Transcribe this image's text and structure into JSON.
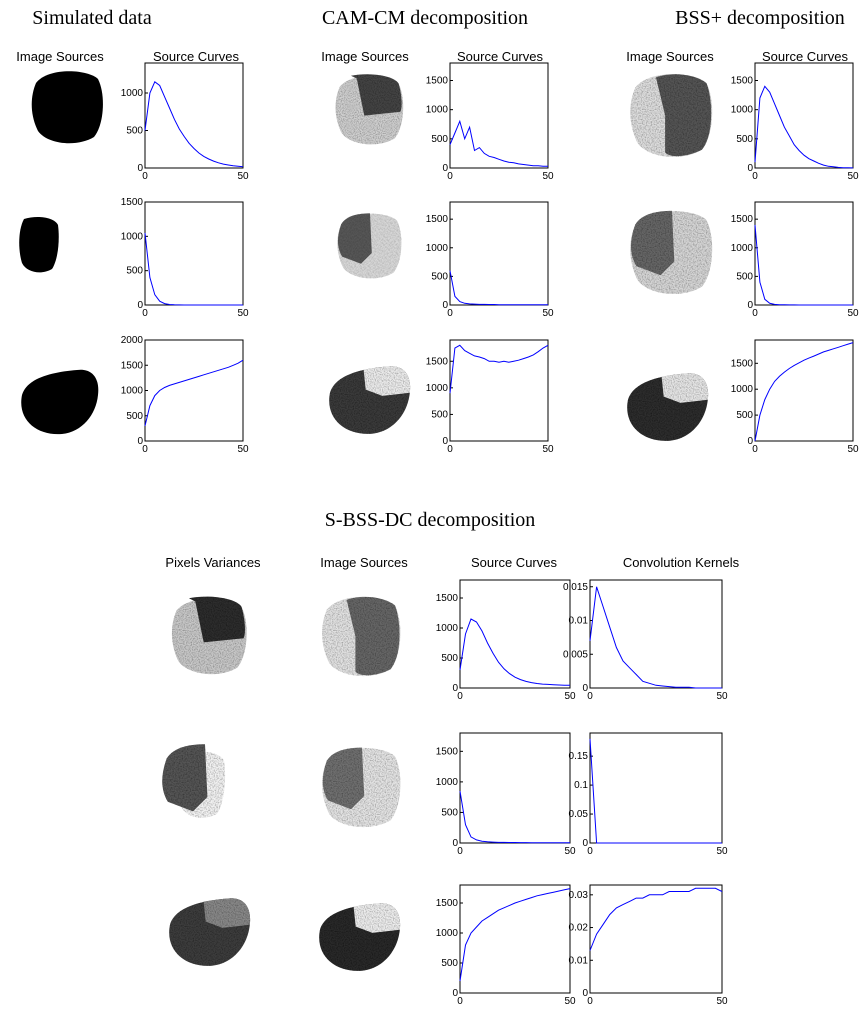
{
  "groups": [
    {
      "title": "Simulated data",
      "headers": [
        "Image Sources",
        "Source Curves"
      ]
    },
    {
      "title": "CAM-CM decomposition",
      "headers": [
        "Image Sources",
        "Source Curves"
      ]
    },
    {
      "title": "BSS+ decomposition",
      "headers": [
        "Image Sources",
        "Source Curves"
      ]
    },
    {
      "title": "S-BSS-DC decomposition",
      "headers": [
        "Pixels Variances",
        "Image Sources",
        "Source Curves",
        "Convolution Kernels"
      ]
    }
  ],
  "chart_data": [
    {
      "type": "line",
      "x": [
        0,
        2.5,
        5,
        7.5,
        10,
        12.5,
        15,
        17.5,
        20,
        22.5,
        25,
        27.5,
        30,
        32.5,
        35,
        37.5,
        40,
        42.5,
        45,
        47.5,
        50
      ],
      "values": [
        500,
        1000,
        1150,
        1100,
        950,
        800,
        650,
        520,
        420,
        330,
        260,
        200,
        155,
        120,
        92,
        70,
        52,
        40,
        30,
        22,
        16
      ],
      "color": "#0000ff",
      "xlim": [
        0,
        50
      ],
      "xticks": [
        0,
        50
      ],
      "ylim": [
        0,
        1400
      ],
      "yticks": [
        0,
        500,
        1000
      ]
    },
    {
      "type": "line",
      "x": [
        0,
        2.5,
        5,
        7.5,
        10,
        12.5,
        15,
        17.5,
        20,
        22.5,
        25,
        27.5,
        30,
        32.5,
        35,
        37.5,
        40,
        42.5,
        45,
        47.5,
        50
      ],
      "values": [
        1050,
        400,
        150,
        55,
        20,
        8,
        3,
        1,
        0,
        0,
        0,
        0,
        0,
        0,
        0,
        0,
        0,
        0,
        0,
        0,
        0
      ],
      "color": "#0000ff",
      "xlim": [
        0,
        50
      ],
      "xticks": [
        0,
        50
      ],
      "ylim": [
        0,
        1500
      ],
      "yticks": [
        0,
        500,
        1000,
        1500
      ]
    },
    {
      "type": "line",
      "x": [
        0,
        2.5,
        5,
        7.5,
        10,
        12.5,
        15,
        17.5,
        20,
        22.5,
        25,
        27.5,
        30,
        32.5,
        35,
        37.5,
        40,
        42.5,
        45,
        47.5,
        50
      ],
      "values": [
        300,
        700,
        900,
        1000,
        1060,
        1100,
        1130,
        1160,
        1190,
        1220,
        1250,
        1280,
        1310,
        1340,
        1370,
        1400,
        1430,
        1460,
        1500,
        1540,
        1600
      ],
      "color": "#0000ff",
      "xlim": [
        0,
        50
      ],
      "xticks": [
        0,
        50
      ],
      "ylim": [
        0,
        2000
      ],
      "yticks": [
        0,
        500,
        1000,
        1500,
        2000
      ]
    },
    {
      "type": "line",
      "x": [
        0,
        2.5,
        5,
        7.5,
        10,
        12.5,
        15,
        17.5,
        20,
        22.5,
        25,
        27.5,
        30,
        32.5,
        35,
        37.5,
        40,
        42.5,
        45,
        47.5,
        50
      ],
      "values": [
        400,
        600,
        800,
        500,
        700,
        300,
        350,
        250,
        200,
        180,
        150,
        120,
        100,
        90,
        70,
        60,
        50,
        40,
        40,
        30,
        30
      ],
      "color": "#0000ff",
      "xlim": [
        0,
        50
      ],
      "xticks": [
        0,
        50
      ],
      "ylim": [
        0,
        1800
      ],
      "yticks": [
        0,
        500,
        1000,
        1500
      ]
    },
    {
      "type": "line",
      "x": [
        0,
        2.5,
        5,
        7.5,
        10,
        12.5,
        15,
        17.5,
        20,
        22.5,
        25,
        27.5,
        30,
        32.5,
        35,
        37.5,
        40,
        42.5,
        45,
        47.5,
        50
      ],
      "values": [
        600,
        150,
        60,
        30,
        20,
        15,
        10,
        10,
        8,
        8,
        6,
        6,
        5,
        5,
        5,
        5,
        4,
        4,
        4,
        4,
        4
      ],
      "color": "#0000ff",
      "xlim": [
        0,
        50
      ],
      "xticks": [
        0,
        50
      ],
      "ylim": [
        0,
        1800
      ],
      "yticks": [
        0,
        500,
        1000,
        1500
      ]
    },
    {
      "type": "line",
      "x": [
        0,
        2.5,
        5,
        7.5,
        10,
        12.5,
        15,
        17.5,
        20,
        22.5,
        25,
        27.5,
        30,
        32.5,
        35,
        37.5,
        40,
        42.5,
        45,
        47.5,
        50
      ],
      "values": [
        900,
        1750,
        1800,
        1700,
        1650,
        1600,
        1580,
        1550,
        1500,
        1500,
        1480,
        1500,
        1480,
        1500,
        1520,
        1550,
        1580,
        1620,
        1680,
        1750,
        1800
      ],
      "color": "#0000ff",
      "xlim": [
        0,
        50
      ],
      "xticks": [
        0,
        50
      ],
      "ylim": [
        0,
        1900
      ],
      "yticks": [
        0,
        500,
        1000,
        1500
      ]
    },
    {
      "type": "line",
      "x": [
        0,
        2.5,
        5,
        7.5,
        10,
        12.5,
        15,
        17.5,
        20,
        22.5,
        25,
        27.5,
        30,
        32.5,
        35,
        37.5,
        40,
        42.5,
        45,
        47.5,
        50
      ],
      "values": [
        100,
        1200,
        1400,
        1300,
        1100,
        900,
        700,
        550,
        400,
        300,
        220,
        160,
        120,
        80,
        50,
        30,
        20,
        10,
        5,
        3,
        2
      ],
      "color": "#0000ff",
      "xlim": [
        0,
        50
      ],
      "xticks": [
        0,
        50
      ],
      "ylim": [
        0,
        1800
      ],
      "yticks": [
        0,
        500,
        1000,
        1500
      ]
    },
    {
      "type": "line",
      "x": [
        0,
        2.5,
        5,
        7.5,
        10,
        12.5,
        15,
        17.5,
        20,
        22.5,
        25,
        27.5,
        30,
        32.5,
        35,
        37.5,
        40,
        42.5,
        45,
        47.5,
        50
      ],
      "values": [
        1400,
        400,
        100,
        30,
        10,
        5,
        3,
        2,
        1,
        0,
        0,
        0,
        0,
        0,
        0,
        0,
        0,
        0,
        0,
        0,
        0
      ],
      "color": "#0000ff",
      "xlim": [
        0,
        50
      ],
      "xticks": [
        0,
        50
      ],
      "ylim": [
        0,
        1800
      ],
      "yticks": [
        0,
        500,
        1000,
        1500
      ]
    },
    {
      "type": "line",
      "x": [
        0,
        2.5,
        5,
        7.5,
        10,
        12.5,
        15,
        17.5,
        20,
        22.5,
        25,
        27.5,
        30,
        32.5,
        35,
        37.5,
        40,
        42.5,
        45,
        47.5,
        50
      ],
      "values": [
        0,
        500,
        800,
        1000,
        1150,
        1250,
        1330,
        1400,
        1460,
        1510,
        1560,
        1600,
        1640,
        1680,
        1720,
        1750,
        1780,
        1810,
        1840,
        1870,
        1900
      ],
      "color": "#0000ff",
      "xlim": [
        0,
        50
      ],
      "xticks": [
        0,
        50
      ],
      "ylim": [
        0,
        1950
      ],
      "yticks": [
        0,
        500,
        1000,
        1500
      ]
    },
    {
      "type": "line",
      "x": [
        0,
        2.5,
        5,
        7.5,
        10,
        12.5,
        15,
        17.5,
        20,
        22.5,
        25,
        27.5,
        30,
        32.5,
        35,
        37.5,
        40,
        42.5,
        45,
        47.5,
        50
      ],
      "values": [
        300,
        900,
        1150,
        1100,
        950,
        750,
        580,
        430,
        320,
        240,
        180,
        140,
        110,
        90,
        75,
        65,
        60,
        55,
        50,
        45,
        45
      ],
      "color": "#0000ff",
      "xlim": [
        0,
        50
      ],
      "xticks": [
        0,
        50
      ],
      "ylim": [
        0,
        1800
      ],
      "yticks": [
        0,
        500,
        1000,
        1500
      ]
    },
    {
      "type": "line",
      "x": [
        0,
        2.5,
        5,
        7.5,
        10,
        12.5,
        15,
        17.5,
        20,
        22.5,
        25,
        27.5,
        30,
        32.5,
        35,
        37.5,
        40,
        42.5,
        45,
        47.5,
        50
      ],
      "values": [
        850,
        300,
        100,
        50,
        30,
        20,
        15,
        10,
        10,
        8,
        8,
        6,
        6,
        5,
        5,
        5,
        5,
        4,
        4,
        4,
        4
      ],
      "color": "#0000ff",
      "xlim": [
        0,
        50
      ],
      "xticks": [
        0,
        50
      ],
      "ylim": [
        0,
        1800
      ],
      "yticks": [
        0,
        500,
        1000,
        1500
      ]
    },
    {
      "type": "line",
      "x": [
        0,
        2.5,
        5,
        7.5,
        10,
        12.5,
        15,
        17.5,
        20,
        22.5,
        25,
        27.5,
        30,
        32.5,
        35,
        37.5,
        40,
        42.5,
        45,
        47.5,
        50
      ],
      "values": [
        200,
        800,
        1000,
        1100,
        1200,
        1260,
        1320,
        1380,
        1420,
        1460,
        1500,
        1530,
        1560,
        1590,
        1620,
        1640,
        1660,
        1680,
        1700,
        1720,
        1740
      ],
      "color": "#0000ff",
      "xlim": [
        0,
        50
      ],
      "xticks": [
        0,
        50
      ],
      "ylim": [
        0,
        1800
      ],
      "yticks": [
        0,
        500,
        1000,
        1500
      ]
    },
    {
      "type": "line",
      "x": [
        0,
        2.5,
        5,
        7.5,
        10,
        12.5,
        15,
        17.5,
        20,
        22.5,
        25,
        27.5,
        30,
        32.5,
        35,
        37.5,
        40,
        42.5,
        45,
        47.5,
        50
      ],
      "values": [
        0.007,
        0.015,
        0.012,
        0.009,
        0.006,
        0.004,
        0.003,
        0.002,
        0.001,
        0.0007,
        0.0004,
        0.0003,
        0.0002,
        0.0001,
        0.0001,
        0.0001,
        0,
        0,
        0,
        0,
        0
      ],
      "color": "#0000ff",
      "xlim": [
        0,
        50
      ],
      "xticks": [
        0,
        50
      ],
      "ylim": [
        0,
        0.016
      ],
      "yticks": [
        0,
        0.005,
        0.01,
        0.015
      ]
    },
    {
      "type": "line",
      "x": [
        0,
        2.5,
        5,
        7.5,
        10,
        12.5,
        15,
        17.5,
        20,
        22.5,
        25,
        27.5,
        30,
        32.5,
        35,
        37.5,
        40,
        42.5,
        45,
        47.5,
        50
      ],
      "values": [
        0.18,
        0,
        0,
        0,
        0,
        0,
        0,
        0,
        0,
        0,
        0,
        0,
        0,
        0,
        0,
        0,
        0,
        0,
        0,
        0,
        0
      ],
      "color": "#0000ff",
      "xlim": [
        0,
        50
      ],
      "xticks": [
        0,
        50
      ],
      "ylim": [
        0,
        0.19
      ],
      "yticks": [
        0,
        0.05,
        0.1,
        0.15
      ]
    },
    {
      "type": "line",
      "x": [
        0,
        2.5,
        5,
        7.5,
        10,
        12.5,
        15,
        17.5,
        20,
        22.5,
        25,
        27.5,
        30,
        32.5,
        35,
        37.5,
        40,
        42.5,
        45,
        47.5,
        50
      ],
      "values": [
        0.013,
        0.018,
        0.021,
        0.024,
        0.026,
        0.027,
        0.028,
        0.029,
        0.029,
        0.03,
        0.03,
        0.03,
        0.031,
        0.031,
        0.031,
        0.031,
        0.032,
        0.032,
        0.032,
        0.032,
        0.031
      ],
      "color": "#0000ff",
      "xlim": [
        0,
        50
      ],
      "xticks": [
        0,
        50
      ],
      "ylim": [
        0,
        0.033
      ],
      "yticks": [
        0,
        0.01,
        0.02,
        0.03
      ]
    }
  ]
}
